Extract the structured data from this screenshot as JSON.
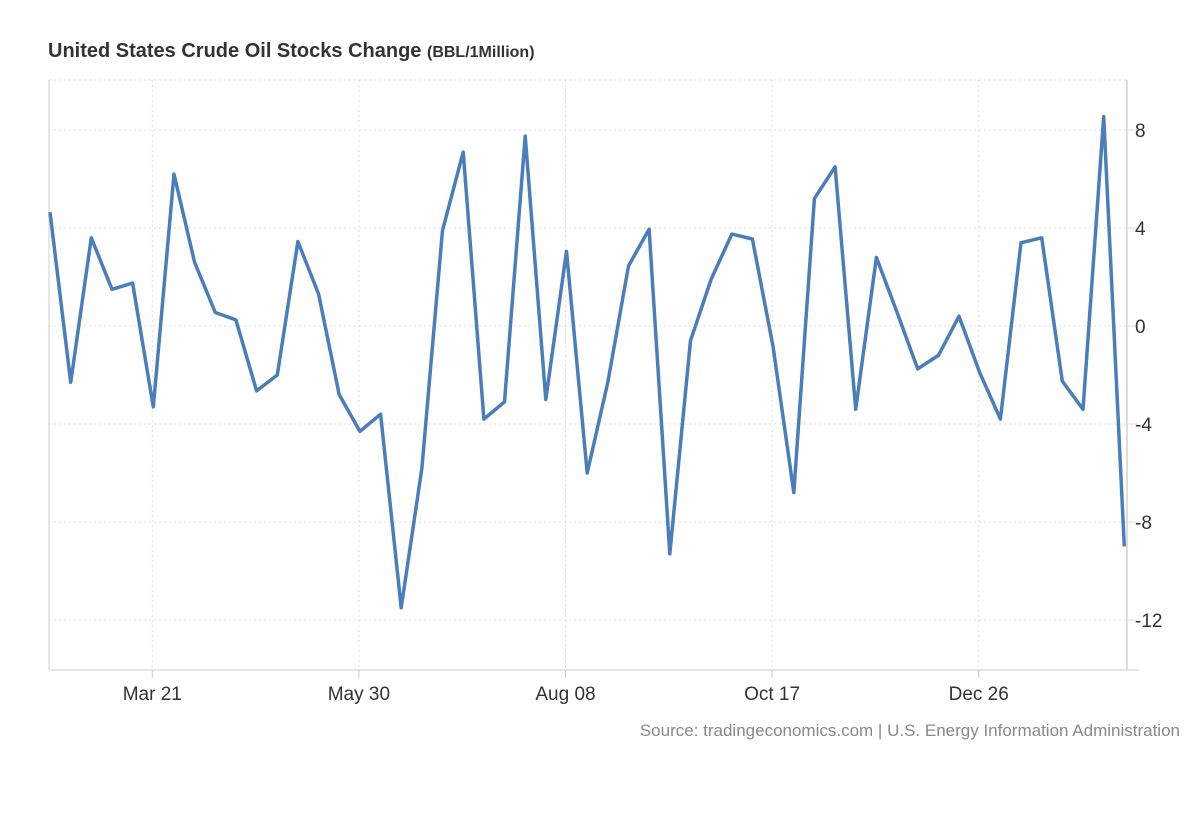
{
  "chart_data": {
    "type": "line",
    "title": "United States Crude Oil Stocks Change",
    "unit": "(BBL/1Million)",
    "xlabel": "",
    "ylabel": "",
    "ylim": [
      -14,
      10
    ],
    "yticks": [
      8,
      4,
      0,
      -4,
      -8,
      -12
    ],
    "xticks": [
      {
        "label": "Mar 21",
        "index": 5
      },
      {
        "label": "May 30",
        "index": 15
      },
      {
        "label": "Aug 08",
        "index": 25
      },
      {
        "label": "Oct 17",
        "index": 35
      },
      {
        "label": "Dec 26",
        "index": 45
      }
    ],
    "grid": true,
    "series": [
      {
        "name": "Crude Oil Stocks Change",
        "color": "#4a7ebb",
        "values": [
          4.65,
          -2.3,
          3.6,
          1.5,
          1.75,
          -3.3,
          6.2,
          2.6,
          0.55,
          0.25,
          -2.65,
          -2.0,
          3.45,
          1.3,
          -2.8,
          -4.3,
          -3.6,
          -11.5,
          -5.8,
          3.9,
          7.1,
          -3.8,
          -3.1,
          7.75,
          -3.0,
          3.05,
          -6.0,
          -2.3,
          2.45,
          3.95,
          -9.3,
          -0.6,
          1.9,
          3.75,
          3.55,
          -0.85,
          -6.8,
          5.2,
          6.5,
          -3.4,
          2.8,
          0.55,
          -1.75,
          -1.2,
          0.4,
          -1.9,
          -3.8,
          3.4,
          3.6,
          -2.25,
          -3.4,
          8.55,
          -9.0
        ]
      }
    ],
    "source": "Source: tradingeconomics.com | U.S. Energy Information Administration"
  }
}
